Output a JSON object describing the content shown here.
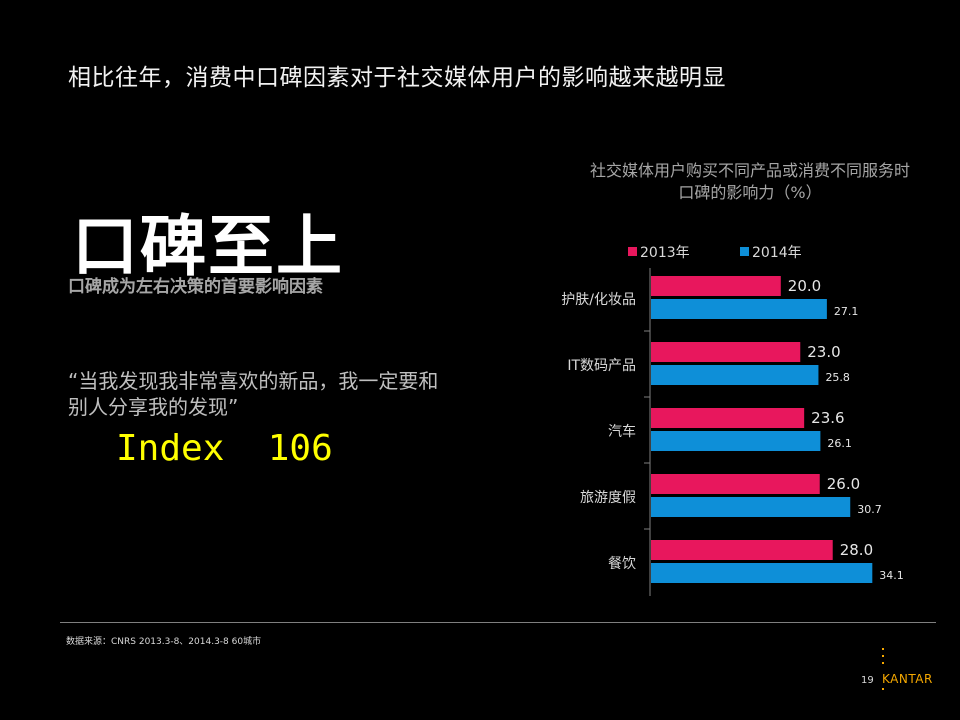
{
  "slide": {
    "title": "相比往年，消费中口碑因素对于社交媒体用户的影响越来越明显",
    "heading": "口碑至上",
    "subheading": "口碑成为左右决策的首要影响因素",
    "quote": "“当我发现我非常喜欢的新品，我一定要和别人分享我的发现”",
    "index_label": "Index",
    "index_value": "106",
    "source_note": "数据来源：CNRS 2013.3-8、2014.3-8  60城市",
    "page_number": "19",
    "logo_text": "KANTAR"
  },
  "colors": {
    "series_2013": "#e8175d",
    "series_2014": "#0e8fd8",
    "index_highlight": "#ffff00",
    "logo": "#f5a800"
  },
  "chart_data": {
    "type": "bar",
    "orientation": "horizontal",
    "title": "社交媒体用户购买不同产品或消费不同服务时口碑的影响力（%）",
    "categories": [
      "护肤/化妆品",
      "IT数码产品",
      "汽车",
      "旅游度假",
      "餐饮"
    ],
    "series": [
      {
        "name": "2013年",
        "values": [
          20.0,
          23.0,
          23.6,
          26.0,
          28.0
        ]
      },
      {
        "name": "2014年",
        "values": [
          27.1,
          25.8,
          26.1,
          30.7,
          34.1
        ]
      }
    ],
    "legend_position": "top",
    "grid": false
  }
}
